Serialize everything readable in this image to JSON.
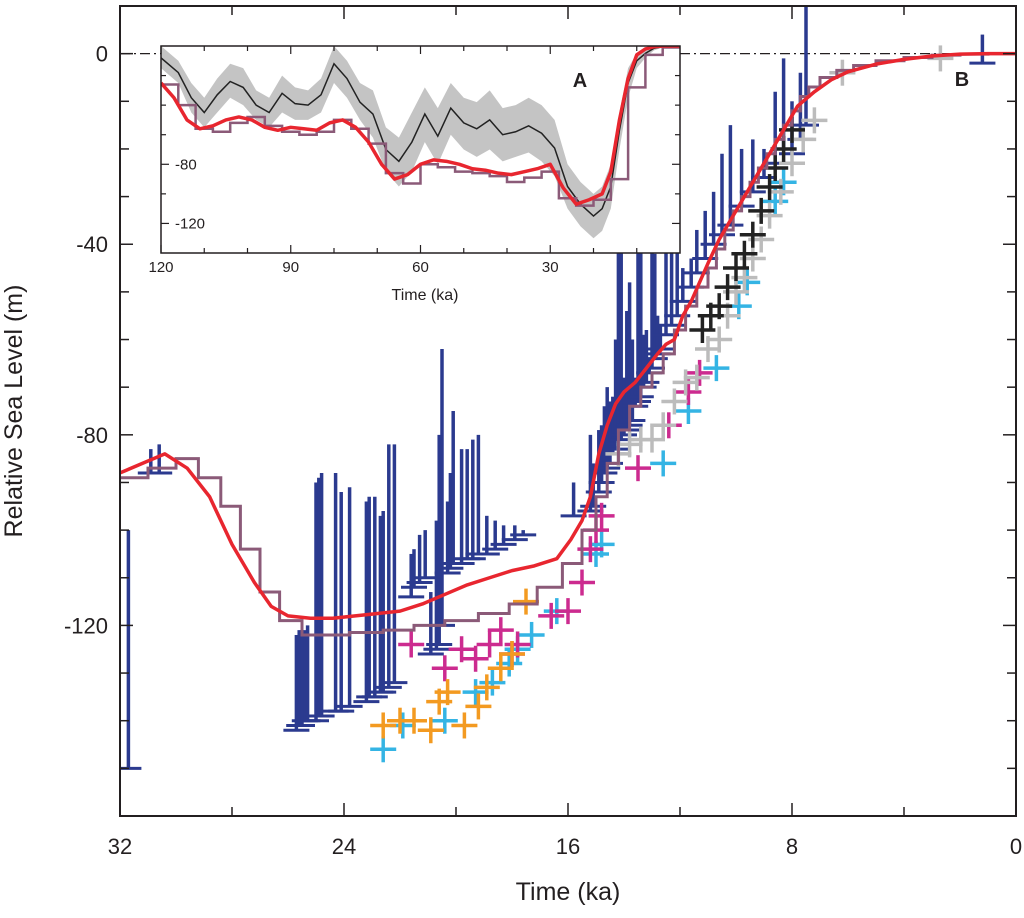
{
  "chart_data": [
    {
      "panel": "B",
      "type": "line",
      "xlabel": "Time (ka)",
      "ylabel": "Relative Sea Level (m)",
      "xlim": [
        32,
        0
      ],
      "ylim": [
        -160,
        10
      ],
      "x_ticks": [
        32,
        24,
        16,
        8,
        0
      ],
      "y_ticks": [
        0,
        -40,
        -80,
        -120
      ],
      "grid": false,
      "reference_line_y": 0,
      "colors": {
        "model_fit": "#e8262f",
        "stepped_model": "#8b5a78",
        "coral_intervals": "#2b3a8f",
        "cross_cyan": "#34b4e4",
        "cross_magenta": "#cc2b8f",
        "cross_orange": "#f39a21",
        "cross_grey": "#bcbcbc",
        "cross_black": "#222222"
      },
      "series": [
        {
          "style": "smooth-line",
          "x": [
            32.0,
            31.2,
            30.4,
            29.6,
            28.8,
            28.0,
            27.2,
            26.6,
            26.0,
            25.2,
            24.4,
            23.6,
            22.8,
            22.0,
            21.2,
            20.4,
            19.6,
            18.8,
            18.0,
            17.2,
            16.4,
            15.9,
            15.5,
            15.2,
            14.9,
            14.6,
            14.3,
            14.0,
            13.6,
            13.2,
            12.8,
            12.5,
            12.2,
            11.9,
            11.6,
            11.3,
            11.0,
            10.6,
            10.2,
            9.8,
            9.4,
            9.0,
            8.6,
            8.2,
            7.8,
            7.2,
            6.6,
            6.0,
            5.0,
            4.0,
            3.0,
            2.0,
            1.0,
            0.0
          ],
          "y": [
            -88,
            -86,
            -84,
            -87,
            -93,
            -103,
            -111,
            -116,
            -118,
            -118.5,
            -118.5,
            -118,
            -117.5,
            -117,
            -115.5,
            -113.5,
            -111.5,
            -110,
            -108.5,
            -107.5,
            -106,
            -102,
            -98,
            -93,
            -84,
            -78,
            -73.5,
            -71,
            -69,
            -66,
            -63,
            -61,
            -60,
            -55,
            -52,
            -48,
            -44,
            -39,
            -35,
            -31,
            -27,
            -23,
            -19,
            -15,
            -11,
            -8,
            -5.5,
            -3.8,
            -2.2,
            -1.2,
            -0.5,
            -0.1,
            0,
            0
          ]
        },
        {
          "style": "stepped-line",
          "x": [
            32.0,
            31.0,
            30.0,
            29.2,
            28.4,
            27.7,
            27.0,
            26.3,
            25.5,
            24.6,
            23.8,
            22.6,
            21.5,
            20.4,
            19.2,
            18.1,
            17.1,
            16.2,
            15.5,
            15.0,
            14.6,
            14.2,
            13.8,
            13.4,
            13.0,
            12.6,
            12.2,
            11.8,
            11.4,
            11.0,
            10.7,
            10.4,
            10.1,
            9.8,
            9.5,
            9.2,
            8.9,
            8.6,
            8.3,
            8.0,
            7.7,
            7.4,
            7.0,
            6.4,
            5.8,
            5.0,
            4.0,
            3.0,
            2.0,
            1.0,
            0.0
          ],
          "y": [
            -89,
            -87,
            -85,
            -89,
            -95,
            -104,
            -113,
            -119,
            -122,
            -122,
            -121.5,
            -121,
            -120,
            -119,
            -117.5,
            -115.5,
            -112,
            -107,
            -100,
            -93,
            -86,
            -79,
            -74,
            -70,
            -67,
            -63,
            -58,
            -53,
            -49,
            -45,
            -41,
            -37,
            -33,
            -30,
            -27,
            -24,
            -21,
            -18,
            -15,
            -12,
            -9,
            -7,
            -5,
            -3.5,
            -2.5,
            -1.5,
            -0.8,
            -0.3,
            -0.1,
            0,
            0
          ]
        }
      ],
      "intervals": {
        "style": "vertical-error-bars",
        "x": [
          31.7,
          30.9,
          30.6,
          25.7,
          25.6,
          25.5,
          25.4,
          25.3,
          25.0,
          24.9,
          24.8,
          24.3,
          24.1,
          23.8,
          23.2,
          23.1,
          22.9,
          22.7,
          22.6,
          22.4,
          22.2,
          21.6,
          21.5,
          21.3,
          21.1,
          20.9,
          20.7,
          20.6,
          20.5,
          20.3,
          20.2,
          20.1,
          19.8,
          19.6,
          19.4,
          19.2,
          18.9,
          18.6,
          18.3,
          17.9,
          17.6,
          15.8,
          15.2,
          15.1,
          14.9,
          14.8,
          14.7,
          14.6,
          14.5,
          14.4,
          14.3,
          14.2,
          14.1,
          14.0,
          13.9,
          13.8,
          13.7,
          13.6,
          13.5,
          13.4,
          13.3,
          13.2,
          13.1,
          13.0,
          12.9,
          12.8,
          12.7,
          12.5,
          12.3,
          12.1,
          11.9,
          11.6,
          11.4,
          11.1,
          10.8,
          10.5,
          10.2,
          9.8,
          9.4,
          9.0,
          8.6,
          8.3,
          8.0,
          7.7,
          7.5,
          1.2
        ],
        "y_low": [
          -150,
          -88,
          -88,
          -142,
          -141,
          -141,
          -140,
          -140,
          -140,
          -139,
          -139,
          -138,
          -138,
          -137,
          -136,
          -135,
          -135,
          -134,
          -134,
          -133,
          -132,
          -114,
          -112,
          -111,
          -110,
          -126,
          -125,
          -124,
          -120,
          -109,
          -108,
          -107,
          -107,
          -106,
          -106,
          -105,
          -105,
          -104,
          -103,
          -102,
          -101,
          -97,
          -96,
          -95,
          -92,
          -90,
          -88,
          -87,
          -86,
          -84,
          -83,
          -82,
          -81,
          -80,
          -79,
          -78,
          -77,
          -74,
          -73,
          -72,
          -70,
          -69,
          -67,
          -66,
          -64,
          -63,
          -62,
          -59,
          -57,
          -55,
          -52,
          -49,
          -46,
          -43,
          -40,
          -38,
          -36,
          -32,
          -29,
          -26,
          -23,
          -20,
          -21,
          -18,
          -15,
          -2
        ],
        "y_high": [
          -100,
          -83,
          -82,
          -122,
          -121,
          -121,
          -121,
          -120,
          -90,
          -89,
          -88,
          -88,
          -92,
          -91,
          -94,
          -93,
          -93,
          -97,
          -96,
          -82,
          -82,
          -105,
          -104,
          -101,
          -100,
          -113,
          -98,
          -80,
          -62,
          -94,
          -88,
          -75,
          -83,
          -83,
          -81,
          -80,
          -97,
          -98,
          -99,
          -99,
          -100,
          -90,
          -80,
          -86,
          -79,
          -78,
          -74,
          -70,
          -73,
          -72,
          -60,
          -37,
          -38,
          -68,
          -54,
          -48,
          -60,
          -68,
          -39,
          -40,
          -59,
          -58,
          -64,
          -41,
          -42,
          -55,
          -57,
          -34,
          -30,
          -22,
          -45,
          -43,
          -37,
          -33,
          -29,
          -21,
          -15,
          -20,
          -18,
          -20,
          -8,
          -1,
          -10,
          -4,
          10,
          4
        ]
      },
      "crosses": [
        {
          "color": "cross_cyan",
          "x": [
            22.6,
            21.9,
            20.4,
            19.3,
            18.7,
            18.1,
            17.8,
            17.3,
            16.4,
            15.0,
            14.8,
            12.6,
            11.7,
            10.7,
            9.9,
            9.6,
            8.6,
            8.3
          ],
          "y": [
            -146,
            -141,
            -140,
            -134,
            -132,
            -128,
            -125,
            -122,
            -117,
            -105,
            -103,
            -86,
            -75,
            -66,
            -53,
            -48,
            -31,
            -27
          ]
        },
        {
          "color": "cross_magenta",
          "x": [
            21.6,
            20.4,
            19.8,
            19.3,
            18.8,
            18.4,
            18.0,
            17.8,
            16.6,
            16.0,
            15.5,
            15.2,
            15.0,
            14.8,
            13.5,
            12.4,
            11.7,
            11.3
          ],
          "y": [
            -124,
            -129,
            -125,
            -127,
            -124,
            -121,
            -126,
            -124,
            -118,
            -117,
            -111,
            -104,
            -100,
            -97,
            -87,
            -78,
            -71,
            -67
          ]
        },
        {
          "color": "cross_orange",
          "x": [
            22.6,
            22.0,
            21.5,
            20.9,
            20.6,
            20.3,
            19.7,
            19.2,
            18.9,
            18.4,
            18.0,
            17.5
          ],
          "y": [
            -141,
            -140,
            -140,
            -142,
            -136,
            -134,
            -141,
            -137,
            -133,
            -129,
            -126,
            -115
          ]
        },
        {
          "color": "cross_grey",
          "x": [
            14.2,
            13.8,
            13.4,
            13.0,
            12.6,
            12.2,
            11.8,
            11.4,
            11.0,
            10.6,
            10.3,
            10.0,
            9.7,
            9.4,
            9.1,
            8.8,
            8.4,
            8.0,
            7.6,
            7.2,
            6.2,
            2.7
          ],
          "y": [
            -84,
            -82,
            -81,
            -81,
            -78,
            -73,
            -69,
            -68,
            -62,
            -60,
            -55,
            -50,
            -47,
            -43,
            -39,
            -34,
            -29,
            -23,
            -18,
            -14,
            -4,
            -1
          ]
        },
        {
          "color": "cross_black",
          "x": [
            11.2,
            10.9,
            10.6,
            10.3,
            10.0,
            9.7,
            9.4,
            9.1,
            8.8,
            8.6,
            8.3,
            8.0
          ],
          "y": [
            -58,
            -55,
            -53,
            -49,
            -45,
            -42,
            -38,
            -33,
            -28,
            -24,
            -20,
            -16
          ]
        }
      ]
    },
    {
      "panel": "A",
      "type": "line",
      "xlabel": "Time (ka)",
      "ylabel": "",
      "xlim": [
        120,
        0
      ],
      "ylim": [
        -140,
        0
      ],
      "x_ticks": [
        120,
        90,
        60,
        30
      ],
      "y_ticks": [
        -80,
        -120
      ],
      "grid": false,
      "colors": {
        "band": "#c4c4c4",
        "central_estimate": "#222222",
        "model_fit": "#e8262f",
        "stepped_model": "#8b5a78"
      },
      "band": {
        "x": [
          120,
          116,
          113,
          110,
          107,
          104,
          101,
          98,
          95,
          92,
          89,
          86,
          83,
          80,
          77,
          74,
          71,
          68,
          65,
          62,
          59,
          56,
          53,
          50,
          47,
          44,
          41,
          38,
          35,
          32,
          29,
          26,
          23,
          20,
          18,
          16,
          14,
          12,
          10,
          8,
          6,
          4,
          2
        ],
        "y_upper": [
          0,
          -10,
          -25,
          -35,
          -22,
          -12,
          -15,
          -30,
          -35,
          -20,
          -28,
          -30,
          -22,
          0,
          -10,
          -25,
          -30,
          -55,
          -62,
          -45,
          -28,
          -42,
          -25,
          -35,
          -38,
          -30,
          -42,
          -40,
          -35,
          -40,
          -50,
          -80,
          -92,
          -100,
          -95,
          -80,
          -45,
          -15,
          -5,
          -2,
          0,
          0,
          0
        ],
        "y_lower": [
          -15,
          -25,
          -45,
          -55,
          -45,
          -35,
          -40,
          -50,
          -55,
          -45,
          -50,
          -50,
          -45,
          -25,
          -35,
          -50,
          -62,
          -85,
          -95,
          -85,
          -65,
          -80,
          -60,
          -70,
          -75,
          -70,
          -78,
          -75,
          -72,
          -78,
          -88,
          -110,
          -122,
          -130,
          -125,
          -110,
          -70,
          -35,
          -15,
          -8,
          -3,
          -1,
          0
        ]
      },
      "series": [
        {
          "style": "central-estimate",
          "x": [
            120,
            116,
            113,
            110,
            107,
            104,
            101,
            98,
            95,
            92,
            89,
            86,
            83,
            80,
            77,
            74,
            71,
            68,
            65,
            62,
            59,
            56,
            53,
            50,
            47,
            44,
            41,
            38,
            35,
            32,
            29,
            26,
            23,
            20,
            18,
            16,
            14,
            12,
            10,
            8,
            6,
            4,
            2
          ],
          "y": [
            -8,
            -18,
            -35,
            -45,
            -33,
            -24,
            -28,
            -40,
            -45,
            -32,
            -39,
            -40,
            -33,
            -12,
            -22,
            -38,
            -46,
            -70,
            -78,
            -65,
            -46,
            -61,
            -42,
            -52,
            -56,
            -50,
            -60,
            -58,
            -54,
            -59,
            -69,
            -95,
            -107,
            -115,
            -110,
            -95,
            -57,
            -25,
            -10,
            -5,
            -1.5,
            -0.5,
            0
          ]
        },
        {
          "style": "stepped-line",
          "x": [
            120,
            116,
            112,
            108,
            104,
            100,
            96,
            92,
            88,
            84,
            80,
            76,
            72,
            68,
            64,
            60,
            56,
            52,
            48,
            44,
            40,
            36,
            32,
            28,
            24,
            20,
            16,
            12,
            8,
            4,
            0
          ],
          "y": [
            -26,
            -40,
            -56,
            -58,
            -52,
            -48,
            -54,
            -58,
            -60,
            -58,
            -50,
            -56,
            -66,
            -86,
            -93,
            -80,
            -82,
            -85,
            -86,
            -88,
            -92,
            -89,
            -85,
            -103,
            -108,
            -104,
            -90,
            -28,
            -6,
            -1,
            0
          ]
        },
        {
          "style": "smooth-line",
          "x": [
            120,
            117,
            114,
            111,
            108,
            105,
            102,
            99,
            96,
            93,
            90,
            87,
            84,
            81,
            78,
            75,
            72,
            69,
            66,
            63,
            60,
            57,
            54,
            51,
            48,
            45,
            42,
            39,
            36,
            33,
            30,
            27,
            24,
            21,
            18,
            16,
            14,
            12,
            10,
            8,
            6,
            4,
            2,
            0
          ],
          "y": [
            -25,
            -35,
            -50,
            -56,
            -54,
            -50,
            -48,
            -50,
            -55,
            -57,
            -55,
            -56,
            -57,
            -52,
            -50,
            -55,
            -65,
            -80,
            -90,
            -87,
            -80,
            -77,
            -78,
            -80,
            -83,
            -84,
            -86,
            -87,
            -85,
            -83,
            -80,
            -96,
            -107,
            -104,
            -100,
            -85,
            -50,
            -22,
            -6,
            -2,
            -0.5,
            0,
            0,
            0
          ]
        }
      ]
    }
  ]
}
